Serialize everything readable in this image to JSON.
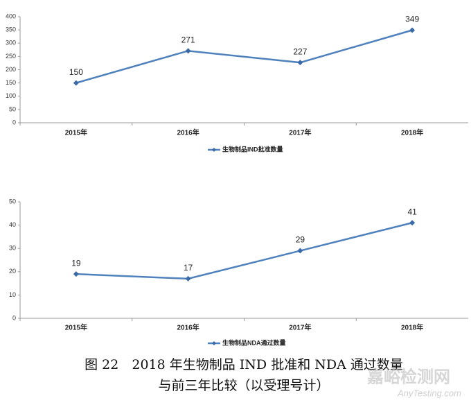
{
  "chart_data": [
    {
      "type": "line",
      "categories": [
        "2015年",
        "2016年",
        "2017年",
        "2018年"
      ],
      "series": [
        {
          "name": "生物制品IND批准数量",
          "color": "#4f81bd",
          "values": [
            150,
            271,
            227,
            349
          ]
        }
      ],
      "ylim": [
        0,
        400
      ],
      "yticks": [
        0,
        50,
        100,
        150,
        200,
        250,
        300,
        350,
        400
      ],
      "legend": "bottom"
    },
    {
      "type": "line",
      "categories": [
        "2015年",
        "2016年",
        "2017年",
        "2018年"
      ],
      "series": [
        {
          "name": "生物制品NDA通过数量",
          "color": "#4f81bd",
          "values": [
            19,
            17,
            29,
            41
          ]
        }
      ],
      "ylim": [
        0,
        50
      ],
      "yticks": [
        0,
        10,
        20,
        30,
        40,
        50
      ],
      "legend": "bottom"
    }
  ],
  "caption": {
    "line1": "图 22　2018 年生物制品 IND 批准和 NDA 通过数量",
    "line2": "与前三年比较（以受理号计）"
  },
  "watermark": {
    "text": "嘉峪检测网",
    "url": "AnyTesting.com"
  }
}
